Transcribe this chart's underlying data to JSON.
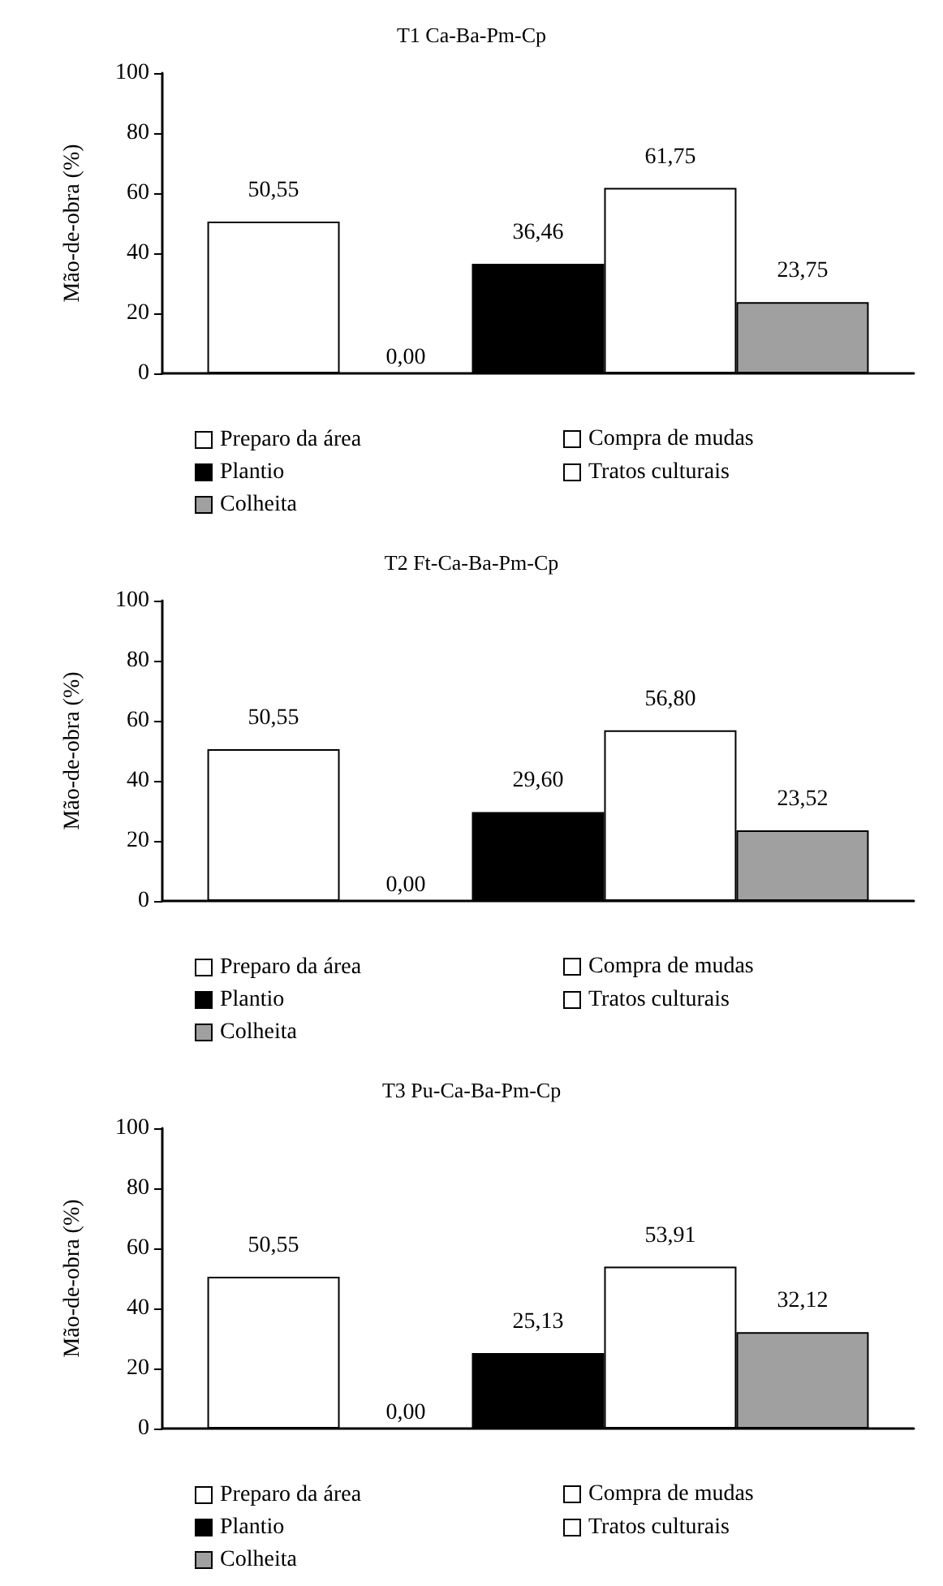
{
  "chart_data": [
    {
      "type": "bar",
      "title": "T1 Ca-Ba-Pm-Cp",
      "ylabel": "Mão-de-obra (%)",
      "categories": [
        null
      ],
      "ylim": [
        0,
        100
      ],
      "yticks": [
        0,
        20,
        40,
        60,
        80,
        100
      ],
      "grid": false,
      "legend": "bottom",
      "series": [
        {
          "name": "Preparo da área",
          "color": "#ffffff",
          "values": [
            50.55
          ],
          "value_labels": [
            "50,55"
          ]
        },
        {
          "name": "Compra de mudas",
          "values": [
            0
          ],
          "value_labels": [
            "0,00"
          ]
        },
        {
          "name": "Plantio",
          "color": "#000000",
          "values": [
            36.46
          ],
          "value_labels": [
            "36,46"
          ]
        },
        {
          "name": "Tratos culturais",
          "color": "#ffffff",
          "values": [
            61.75
          ],
          "value_labels": [
            "61,75"
          ]
        },
        {
          "name": "Colheita",
          "color": "#a0a0a0",
          "values": [
            23.75
          ],
          "value_labels": [
            "23,75"
          ]
        }
      ]
    },
    {
      "type": "bar",
      "title": "T2 Ft-Ca-Ba-Pm-Cp",
      "ylabel": "Mão-de-obra (%)",
      "categories": [
        null
      ],
      "ylim": [
        0,
        100
      ],
      "yticks": [
        0,
        20,
        40,
        60,
        80,
        100
      ],
      "grid": false,
      "legend": "bottom",
      "series": [
        {
          "name": "Preparo da área",
          "color": "#ffffff",
          "values": [
            50.55
          ],
          "value_labels": [
            "50,55"
          ]
        },
        {
          "name": "Compra de mudas",
          "values": [
            0
          ],
          "value_labels": [
            "0,00"
          ]
        },
        {
          "name": "Plantio",
          "color": "#000000",
          "values": [
            29.6
          ],
          "value_labels": [
            "29,60"
          ]
        },
        {
          "name": "Tratos culturais",
          "color": "#ffffff",
          "values": [
            56.8
          ],
          "value_labels": [
            "56,80"
          ]
        },
        {
          "name": "Colheita",
          "color": "#a0a0a0",
          "values": [
            23.52
          ],
          "value_labels": [
            "23,52"
          ]
        }
      ]
    },
    {
      "type": "bar",
      "title": "T3 Pu-Ca-Ba-Pm-Cp",
      "ylabel": "Mão-de-obra (%)",
      "categories": [
        null
      ],
      "ylim": [
        0,
        100
      ],
      "yticks": [
        0,
        20,
        40,
        60,
        80,
        100
      ],
      "grid": false,
      "legend": "bottom",
      "series": [
        {
          "name": "Preparo da área",
          "color": "#ffffff",
          "values": [
            50.55
          ],
          "value_labels": [
            "50,55"
          ]
        },
        {
          "name": "Compra de mudas",
          "values": [
            0
          ],
          "value_labels": [
            "0,00"
          ]
        },
        {
          "name": "Plantio",
          "color": "#000000",
          "values": [
            25.13
          ],
          "value_labels": [
            "25,13"
          ]
        },
        {
          "name": "Tratos culturais",
          "color": "#ffffff",
          "values": [
            53.91
          ],
          "value_labels": [
            "53,91"
          ]
        },
        {
          "name": "Colheita",
          "color": "#a0a0a0",
          "values": [
            32.12
          ],
          "value_labels": [
            "32,12"
          ]
        }
      ]
    }
  ]
}
